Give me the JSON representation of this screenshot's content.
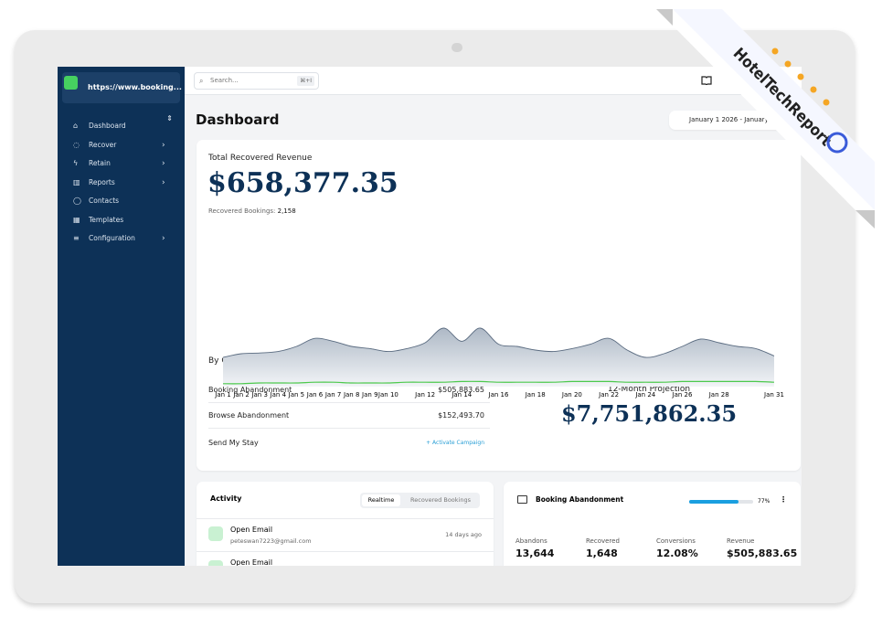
{
  "sidebar": {
    "site": "https://www.booking...",
    "nav": [
      {
        "label": "Dashboard",
        "has_submenu": false
      },
      {
        "label": "Recover",
        "has_submenu": true
      },
      {
        "label": "Retain",
        "has_submenu": true
      },
      {
        "label": "Reports",
        "has_submenu": true
      },
      {
        "label": "Contacts",
        "has_submenu": false
      },
      {
        "label": "Templates",
        "has_submenu": false
      },
      {
        "label": "Configuration",
        "has_submenu": true
      }
    ]
  },
  "search": {
    "placeholder": "Search...",
    "shortcut": "⌘+I"
  },
  "header": {
    "title": "Dashboard",
    "date_range": "January 1 2026 - January ..."
  },
  "revenue": {
    "title": "Total Recovered Revenue",
    "amount": "$658,377.35",
    "bookings_label": "Recovered Bookings:",
    "bookings": "2,158"
  },
  "revenue_chart": {
    "type": "area",
    "categories": [
      "Jan 1",
      "Jan 2",
      "Jan 3",
      "Jan 4",
      "Jan 5",
      "Jan 6",
      "Jan 7",
      "Jan 8",
      "Jan 9",
      "Jan 10",
      null,
      "Jan 12",
      null,
      "Jan 14",
      null,
      "Jan 16",
      null,
      "Jan 18",
      null,
      "Jan 20",
      null,
      "Jan 22",
      null,
      "Jan 24",
      null,
      "Jan 26",
      null,
      "Jan 28",
      null,
      null,
      "Jan 31"
    ],
    "ylim": [
      0,
      100
    ],
    "series": [
      {
        "color": "#5a6b80",
        "values": [
          40,
          45,
          46,
          48,
          55,
          66,
          62,
          55,
          52,
          48,
          52,
          60,
          80,
          62,
          80,
          58,
          55,
          50,
          48,
          52,
          58,
          66,
          50,
          40,
          45,
          55,
          65,
          60,
          55,
          52,
          42
        ]
      },
      {
        "color": "#4cc94c",
        "values": [
          4,
          4,
          5,
          5,
          5,
          6,
          6,
          5,
          5,
          5,
          6,
          6,
          6,
          7,
          7,
          6,
          6,
          6,
          6,
          7,
          7,
          7,
          6,
          6,
          6,
          7,
          7,
          7,
          7,
          7,
          6
        ]
      }
    ]
  },
  "campaigns": {
    "title": "By Campaign",
    "rows": [
      {
        "name": "Booking Abandonment",
        "value": "$505,883.65"
      },
      {
        "name": "Browse Abandonment",
        "value": "$152,493.70"
      },
      {
        "name": "Send My Stay",
        "action": "+ Activate Campaign"
      }
    ]
  },
  "projection": {
    "label": "12-Month Projection",
    "amount": "$7,751,862.35"
  },
  "activity": {
    "title": "Activity",
    "tabs": [
      "Realtime",
      "Recovered Bookings"
    ],
    "items": [
      {
        "title": "Open Email",
        "email": "peteswan7223@gmail.com",
        "time": "14 days ago"
      },
      {
        "title": "Open Email"
      }
    ]
  },
  "booking_card": {
    "title": "Booking Abandonment",
    "progress": 77,
    "progress_label": "77%",
    "stats": [
      {
        "label": "Abandons",
        "value": "13,644"
      },
      {
        "label": "Recovered",
        "value": "1,648"
      },
      {
        "label": "Conversions",
        "value": "12.08%"
      },
      {
        "label": "Revenue",
        "value": "$505,883.65"
      }
    ]
  },
  "badge": {
    "text": "HotelTechReport"
  }
}
